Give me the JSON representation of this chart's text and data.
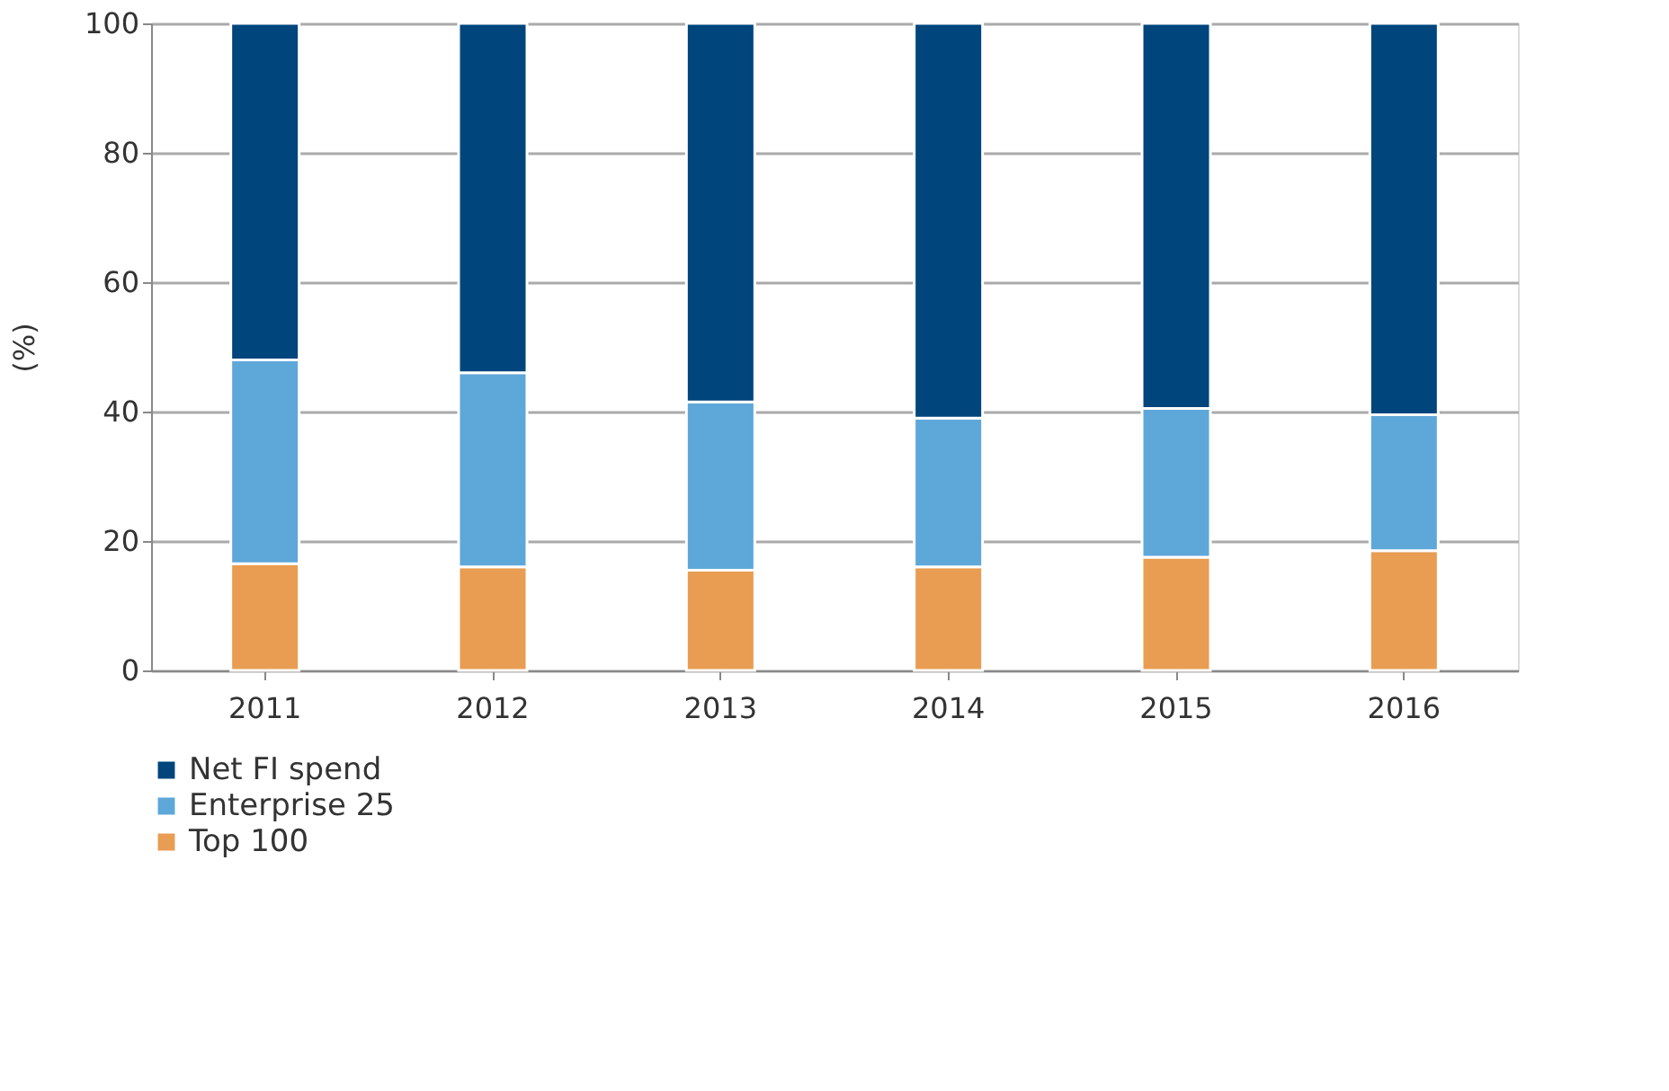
{
  "chart_data": {
    "type": "bar",
    "stacked": true,
    "ylabel": "(%)",
    "categories": [
      "2011",
      "2012",
      "2013",
      "2014",
      "2015",
      "2016"
    ],
    "series": [
      {
        "name": "Top 100",
        "color": "#e89d52",
        "values": [
          16.5,
          16,
          15.5,
          16,
          17.5,
          18.5
        ]
      },
      {
        "name": "Enterprise 25",
        "color": "#5ea7d9",
        "values": [
          31.5,
          30,
          26,
          23,
          23,
          21
        ]
      },
      {
        "name": "Net FI spend",
        "color": "#00457c",
        "values": [
          52,
          54,
          58.5,
          61,
          59.5,
          60.5
        ]
      }
    ],
    "ylim": [
      0,
      100
    ],
    "yticks": [
      0,
      20,
      40,
      60,
      80,
      100
    ],
    "grid": "y",
    "legend": "bottom"
  }
}
